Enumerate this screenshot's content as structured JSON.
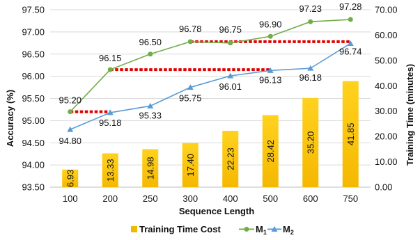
{
  "chart_data": {
    "type": "bar+line",
    "categories": [
      "100",
      "200",
      "250",
      "300",
      "400",
      "500",
      "600",
      "750"
    ],
    "xlabel": "Sequence Length",
    "ylabel_left": "Accuracy (%)",
    "ylabel_right": "Training Time (minutes)",
    "ylim_left": [
      93.5,
      97.5
    ],
    "yticks_left": [
      "93.50",
      "94.00",
      "94.50",
      "95.00",
      "95.50",
      "96.00",
      "96.50",
      "97.00",
      "97.50"
    ],
    "ylim_right": [
      0,
      70
    ],
    "yticks_right": [
      "0.00",
      "10.00",
      "20.00",
      "30.00",
      "40.00",
      "50.00",
      "60.00",
      "70.00"
    ],
    "legend_position": "bottom",
    "bars": {
      "name": "Training Time Cost",
      "axis": "right",
      "color": "#f5b800",
      "values": [
        6.93,
        13.33,
        14.98,
        17.4,
        22.23,
        28.42,
        35.2,
        41.85
      ],
      "labels": [
        "6.93",
        "13.33",
        "14.98",
        "17.40",
        "22.23",
        "28.42",
        "35.20",
        "41.85"
      ]
    },
    "series": [
      {
        "name": "M1",
        "axis": "left",
        "color": "#70ad47",
        "marker": "circle",
        "values": [
          95.2,
          96.15,
          96.5,
          96.78,
          96.75,
          96.9,
          97.23,
          97.28
        ],
        "labels": [
          "95.20",
          "96.15",
          "96.50",
          "96.78",
          "96.75",
          "96.90",
          "97.23",
          "97.28"
        ]
      },
      {
        "name": "M2",
        "axis": "left",
        "color": "#5b9bd5",
        "marker": "triangle",
        "values": [
          94.8,
          95.18,
          95.33,
          95.75,
          96.01,
          96.13,
          96.18,
          96.74
        ],
        "labels": [
          "94.80",
          "95.18",
          "95.33",
          "95.75",
          "96.01",
          "96.13",
          "96.18",
          "96.74"
        ]
      }
    ],
    "reference_lines": [
      {
        "from": "100",
        "to": "200",
        "value": 95.2,
        "color": "#e00000"
      },
      {
        "from": "200",
        "to": "500",
        "value": 96.15,
        "color": "#e00000"
      },
      {
        "from": "300",
        "to": "750",
        "value": 96.78,
        "color": "#e00000"
      }
    ]
  },
  "legend": {
    "bar_label": "Training Time Cost",
    "m1_main": "M",
    "m1_sub": "1",
    "m2_main": "M",
    "m2_sub": "2"
  }
}
